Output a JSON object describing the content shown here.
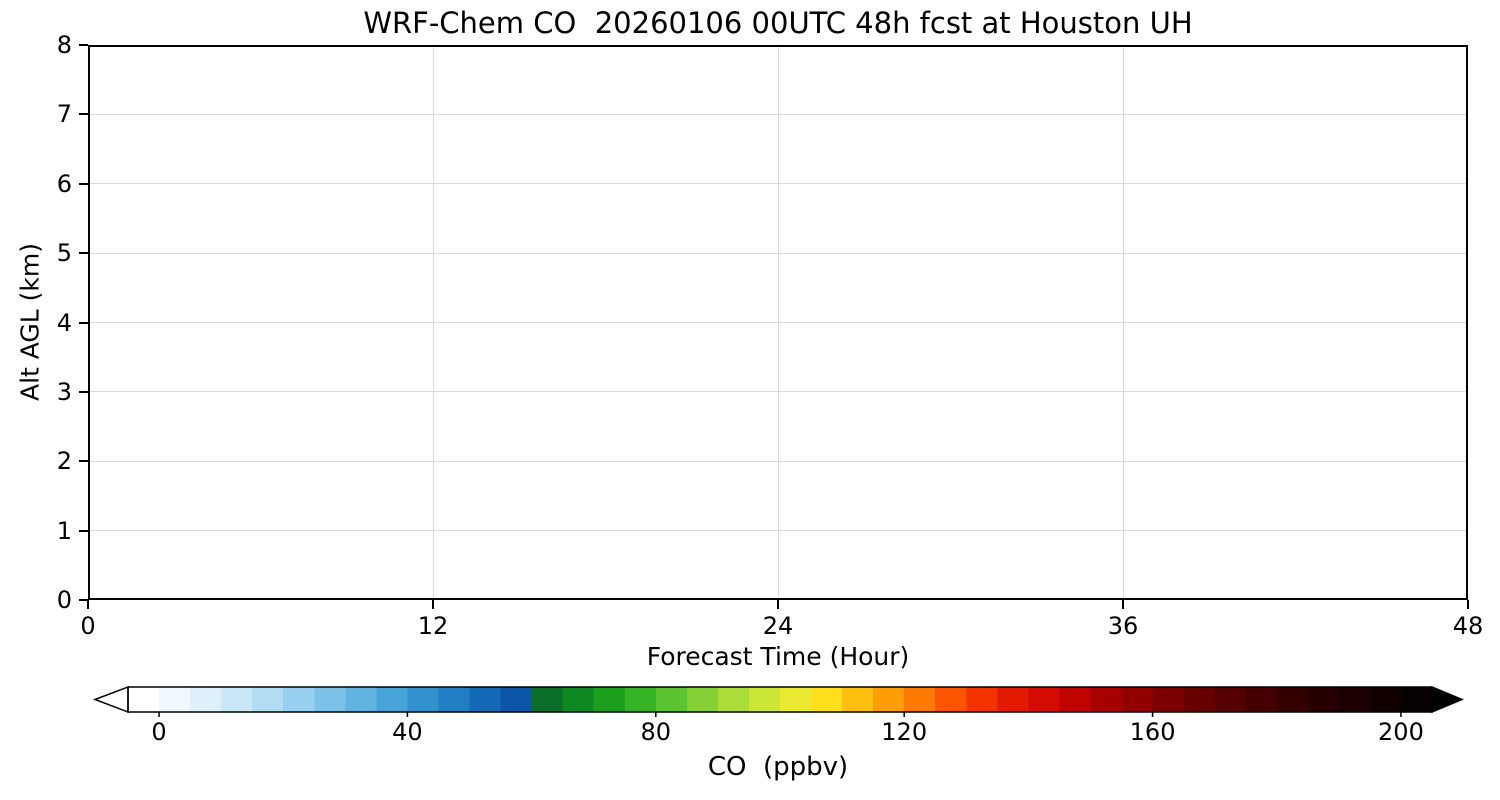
{
  "chart_data": {
    "type": "heatmap",
    "title": "WRF-Chem CO  20260106 00UTC 48h fcst at Houston UH",
    "xlabel": "Forecast Time (Hour)",
    "ylabel": "Alt AGL (km)",
    "xlim": [
      0,
      48
    ],
    "ylim": [
      0,
      8
    ],
    "x_ticks": [
      0,
      12,
      24,
      36,
      48
    ],
    "y_ticks": [
      0,
      1,
      2,
      3,
      4,
      5,
      6,
      7,
      8
    ],
    "grid": true,
    "grid_color": "#d9d9d9",
    "plot_background": "#ffffff",
    "values": [],
    "data_note": "plot area is blank/white (no CO contour values visible above colorbar minimum)",
    "colorbar": {
      "label": "CO  (ppbv)",
      "orientation": "horizontal",
      "ticks": [
        0,
        40,
        80,
        120,
        160,
        200
      ],
      "vmin": -5,
      "vmax": 205,
      "extend": "both",
      "under_color": "#ffffff",
      "over_color": "#000000",
      "segment_colors": [
        "#ffffff",
        "#f0f8fd",
        "#def0fa",
        "#c9e7f7",
        "#b1dcf3",
        "#97d0ee",
        "#7cc2e8",
        "#61b3e1",
        "#48a3d8",
        "#3391cf",
        "#217ec3",
        "#1469b6",
        "#0b54a7",
        "#0a6e28",
        "#0f8822",
        "#1c9f1c",
        "#35b325",
        "#5cc430",
        "#86d236",
        "#aadd38",
        "#cce637",
        "#ebea32",
        "#ffdf1b",
        "#ffbf0f",
        "#ff9d05",
        "#ff7a00",
        "#fb5500",
        "#f23300",
        "#e41a00",
        "#d30b00",
        "#bf0300",
        "#a80000",
        "#920000",
        "#7c0000",
        "#680000",
        "#550000",
        "#440000",
        "#340000",
        "#260000",
        "#1a0000",
        "#100000",
        "#070000"
      ]
    }
  }
}
